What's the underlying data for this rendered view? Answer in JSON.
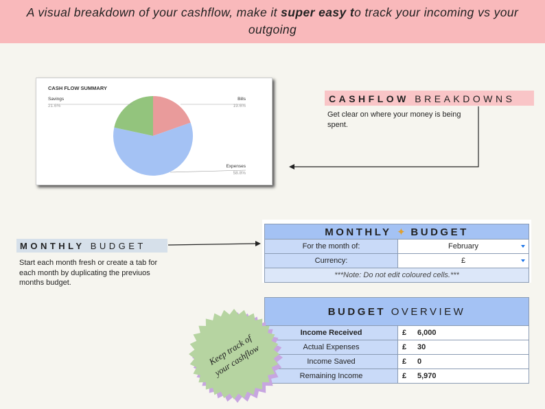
{
  "banner": {
    "text_before": "A visual breakdown of your cashflow, make it ",
    "text_bold": "super easy t",
    "text_after": "o track your incoming vs your outgoing"
  },
  "chart_data": {
    "type": "pie",
    "title": "CASH FLOW SUMMARY",
    "categories": [
      "Bills",
      "Expenses",
      "Savings"
    ],
    "values": [
      19.6,
      58.8,
      21.6
    ],
    "value_labels": [
      "19.6%",
      "58.8%",
      "21.6%"
    ],
    "colors": [
      "#e99b9b",
      "#a4c2f4",
      "#93c47d"
    ]
  },
  "cashflow_callout": {
    "title_bold": "CASHFLOW",
    "title_rest": "BREAKDOWNS",
    "description": "Get clear on where your money is being spent."
  },
  "budget_callout": {
    "title_bold": "MONTHLY",
    "title_rest": "BUDGET",
    "description": "Start each month fresh or create a tab for each month by duplicating the previuos months budget."
  },
  "monthly_budget": {
    "title_bold": "MONTHLY",
    "title_rest": "BUDGET",
    "rows": [
      [
        "For the month of:",
        "February"
      ],
      [
        "Currency:",
        "£"
      ]
    ],
    "note": "***Note: Do not edit coloured cells.***"
  },
  "budget_overview": {
    "title_bold": "BUDGET",
    "title_rest": "OVERVIEW",
    "rows": [
      [
        "Income Received",
        "£",
        "6,000"
      ],
      [
        "Actual Expenses",
        "£",
        "30"
      ],
      [
        "Income Saved",
        "£",
        "0"
      ],
      [
        "Remaining Income",
        "£",
        "5,970"
      ]
    ]
  },
  "stamp": {
    "line1": "Keep track of",
    "line2": "your cashflow"
  }
}
